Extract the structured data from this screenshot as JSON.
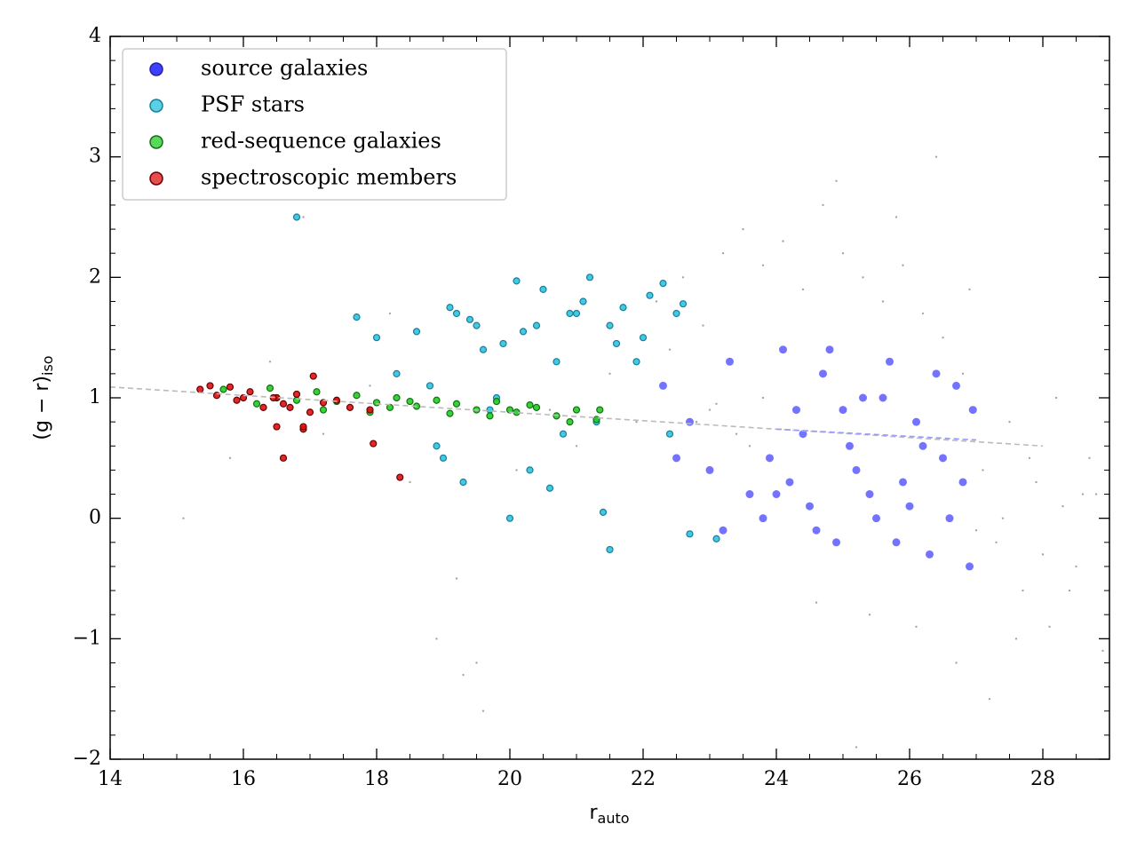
{
  "chart_data": {
    "type": "scatter",
    "x_label": {
      "text": "r",
      "sub": "auto"
    },
    "y_label": {
      "text": "(g − r)",
      "sub": "iso"
    },
    "xlim": [
      14,
      29
    ],
    "ylim": [
      -2,
      4
    ],
    "xticks": [
      14,
      16,
      18,
      20,
      22,
      24,
      26,
      28
    ],
    "yticks": [
      {
        "value": -2,
        "label": "−2"
      },
      {
        "value": -1,
        "label": "−1"
      },
      0,
      1,
      2,
      3,
      4
    ],
    "xminorticks": [
      14.5,
      15,
      15.5,
      16.5,
      17,
      17.5,
      18.5,
      19,
      19.5,
      20.5,
      21,
      21.5,
      22.5,
      23,
      23.5,
      24.5,
      25,
      25.5,
      26.5,
      27,
      27.5,
      28.5
    ],
    "yminorticks": [
      -1.8,
      -1.6,
      -1.4,
      -1.2,
      -0.8,
      -0.6,
      -0.4,
      -0.2,
      0.2,
      0.4,
      0.6,
      0.8,
      1.2,
      1.4,
      1.6,
      1.8,
      2.2,
      2.4,
      2.6,
      2.8,
      3.2,
      3.4,
      3.6,
      3.8
    ],
    "legend": "upper left",
    "series": [
      {
        "color": "#000000",
        "x": [
          15.1,
          15.8,
          16.4,
          17.2,
          17.9,
          18.5,
          18.9,
          19.3,
          19.6,
          20.1,
          20.6,
          21.0,
          21.5,
          21.9,
          22.2,
          22.6,
          22.9,
          23.2,
          23.5,
          23.8,
          24.1,
          24.4,
          24.7,
          25.0,
          25.3,
          25.6,
          25.9,
          26.2,
          26.5,
          26.8,
          27.1,
          27.3,
          27.5,
          27.7,
          27.9,
          28.1,
          28.3,
          28.5,
          28.7,
          28.9,
          23.0,
          23.4,
          23.8,
          22.8,
          23.6,
          24.6,
          25.4,
          26.1,
          26.7,
          27.2,
          27.6,
          28.0,
          28.4,
          28.8,
          27.4,
          27.8,
          28.2,
          25.8,
          24.9,
          26.4,
          19.2,
          19.5,
          16.9,
          18.2,
          22.4,
          23.1,
          27.0,
          25.2,
          26.9,
          28.6
        ],
        "values": [
          0.0,
          0.5,
          1.3,
          0.7,
          1.1,
          0.3,
          -1.0,
          -1.3,
          -1.6,
          0.4,
          0.9,
          0.6,
          1.2,
          0.8,
          1.8,
          2.0,
          1.6,
          2.2,
          2.4,
          2.1,
          2.3,
          1.9,
          2.6,
          2.2,
          2.0,
          1.8,
          2.1,
          1.7,
          1.5,
          1.2,
          0.4,
          -0.2,
          0.8,
          -0.6,
          0.3,
          -0.9,
          0.1,
          -0.4,
          0.5,
          -1.1,
          0.9,
          0.7,
          1.0,
          0.8,
          0.6,
          -0.7,
          -0.8,
          -0.9,
          -1.2,
          -1.5,
          -1.0,
          -0.3,
          -0.6,
          0.2,
          0.0,
          0.5,
          1.0,
          2.5,
          2.8,
          3.0,
          -0.5,
          -1.2,
          2.5,
          1.7,
          1.4,
          0.95,
          -0.1,
          -1.9,
          1.9,
          0.2
        ]
      },
      {
        "name": "source galaxies",
        "color": "#0000ff",
        "x": [
          22.3,
          22.7,
          23.0,
          23.3,
          23.6,
          23.9,
          24.1,
          24.3,
          24.5,
          24.7,
          24.9,
          25.1,
          25.3,
          25.5,
          25.7,
          25.9,
          26.1,
          26.3,
          26.5,
          26.7,
          26.9,
          24.2,
          24.6,
          25.0,
          25.4,
          25.8,
          26.2,
          26.6,
          24.4,
          24.8,
          25.2,
          25.6,
          26.0,
          26.4,
          26.8,
          22.5,
          23.2,
          23.8,
          24.0,
          26.95
        ],
        "values": [
          1.1,
          0.8,
          0.4,
          1.3,
          0.2,
          0.5,
          1.4,
          0.9,
          0.1,
          1.2,
          -0.2,
          0.6,
          1.0,
          0.0,
          1.3,
          0.3,
          0.8,
          -0.3,
          0.5,
          1.1,
          -0.4,
          0.3,
          -0.1,
          0.9,
          0.2,
          -0.2,
          0.6,
          0.0,
          0.7,
          1.4,
          0.4,
          1.0,
          0.1,
          1.2,
          0.3,
          0.5,
          -0.1,
          0.0,
          0.2,
          0.9
        ]
      },
      {
        "name": "PSF stars",
        "color": "#22c0dd",
        "x": [
          17.7,
          18.0,
          18.3,
          18.6,
          18.9,
          19.1,
          19.3,
          19.5,
          19.7,
          19.9,
          20.1,
          20.3,
          20.5,
          20.7,
          20.9,
          21.1,
          21.3,
          21.5,
          21.7,
          21.9,
          22.1,
          22.3,
          22.5,
          22.6,
          18.8,
          19.2,
          19.6,
          20.0,
          20.4,
          20.8,
          21.2,
          21.6,
          22.0,
          22.4,
          19.0,
          19.4,
          19.8,
          20.2,
          20.6,
          21.0,
          21.4,
          16.8,
          23.1,
          22.7,
          21.5
        ],
        "values": [
          1.67,
          1.5,
          1.2,
          1.55,
          0.6,
          1.75,
          0.3,
          1.6,
          0.9,
          1.45,
          1.97,
          0.4,
          1.9,
          1.3,
          1.7,
          1.8,
          0.8,
          1.6,
          1.75,
          1.3,
          1.85,
          1.95,
          1.7,
          1.78,
          1.1,
          1.7,
          1.4,
          0.0,
          1.6,
          0.7,
          2.0,
          1.45,
          1.5,
          0.7,
          0.5,
          1.65,
          1.0,
          1.55,
          0.25,
          1.7,
          0.05,
          2.5,
          -0.17,
          -0.13,
          -0.26
        ]
      },
      {
        "name": "red-sequence galaxies",
        "color": "#22cc22",
        "x": [
          16.2,
          16.5,
          16.8,
          17.1,
          17.4,
          17.7,
          18.0,
          18.3,
          18.6,
          18.9,
          19.2,
          19.5,
          19.8,
          20.1,
          20.4,
          20.7,
          21.0,
          21.3,
          17.2,
          17.9,
          18.5,
          19.1,
          19.7,
          20.3,
          20.9,
          21.35,
          16.4,
          15.7,
          18.2,
          20.0
        ],
        "values": [
          0.95,
          1.0,
          0.98,
          1.05,
          0.97,
          1.02,
          0.96,
          1.0,
          0.93,
          0.98,
          0.95,
          0.9,
          0.97,
          0.88,
          0.92,
          0.85,
          0.9,
          0.82,
          0.9,
          0.88,
          0.97,
          0.87,
          0.85,
          0.94,
          0.8,
          0.9,
          1.08,
          1.07,
          0.92,
          0.9
        ]
      },
      {
        "name": "spectroscopic members",
        "color": "#dd1111",
        "x": [
          15.35,
          15.5,
          15.6,
          15.8,
          15.9,
          16.0,
          16.1,
          16.3,
          16.5,
          16.6,
          16.7,
          16.8,
          16.9,
          17.0,
          17.05,
          17.2,
          17.4,
          17.6,
          17.9,
          16.5,
          16.9,
          16.6,
          17.95,
          18.35,
          16.45
        ],
        "values": [
          1.07,
          1.1,
          1.02,
          1.09,
          0.98,
          1.0,
          1.05,
          0.92,
          1.0,
          0.95,
          0.92,
          1.03,
          0.74,
          0.88,
          1.18,
          0.96,
          0.98,
          0.92,
          0.9,
          0.76,
          0.76,
          0.5,
          0.62,
          0.34,
          1.0
        ]
      }
    ],
    "lines": [
      {
        "color": "#bbbbbb",
        "x": [
          14,
          28
        ],
        "values": [
          1.09,
          0.6
        ]
      },
      {
        "color": "#9999ff",
        "x": [
          24,
          27
        ],
        "values": [
          0.74,
          0.65
        ]
      }
    ]
  }
}
